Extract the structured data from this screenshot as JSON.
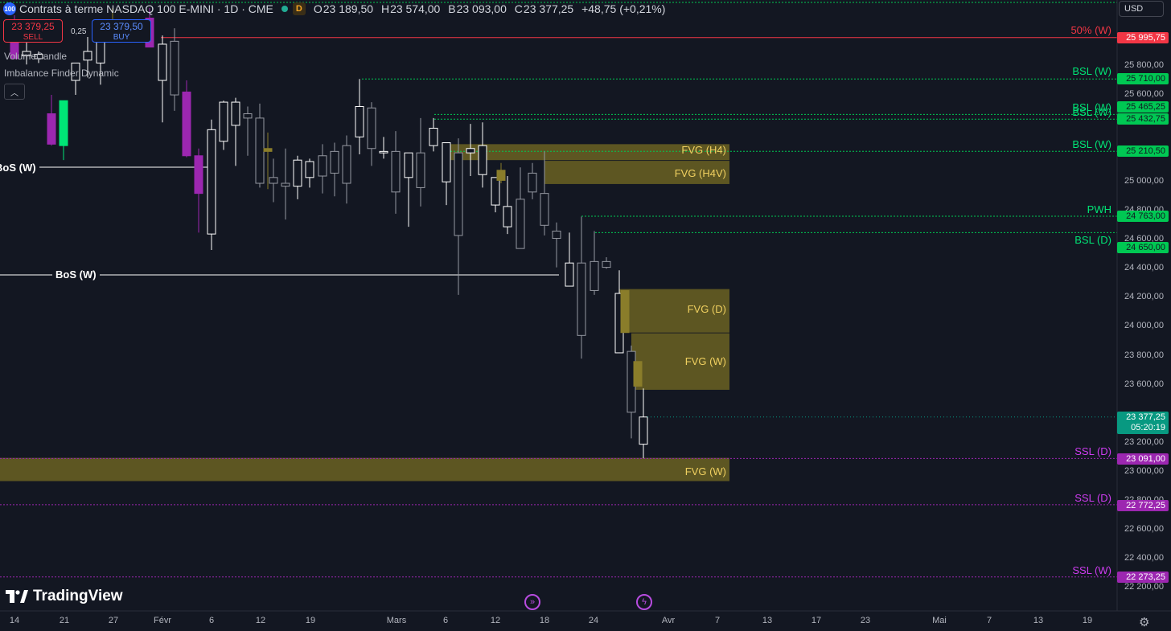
{
  "header": {
    "symbol_badge": "100",
    "title": "Contrats à terme NASDAQ 100 E-MINI · 1D · CME",
    "status_badge": "D",
    "ohlc": [
      {
        "k": "O",
        "v": "23 189,50"
      },
      {
        "k": "H",
        "v": "23 574,00"
      },
      {
        "k": "B",
        "v": "23 093,00"
      },
      {
        "k": "C",
        "v": "23 377,25"
      }
    ],
    "change": "+48,75 (+0,21%)"
  },
  "trade": {
    "sell_price": "23 379,25",
    "sell_label": "SELL",
    "buy_price": "23 379,50",
    "buy_label": "BUY",
    "spread": "0,25"
  },
  "indicators": [
    "VolumeCandle",
    "Imbalance Finder Dynamic"
  ],
  "currency": "USD",
  "price_axis": [
    "25 800,00",
    "25 600,00",
    "25 000,00",
    "24 800,00",
    "24 600,00",
    "24 400,00",
    "24 200,00",
    "24 000,00",
    "23 800,00",
    "23 600,00",
    "23 200,00",
    "23 000,00",
    "22 800,00",
    "22 600,00",
    "22 400,00",
    "22 200,00"
  ],
  "level_tags": [
    {
      "label": "50% (W)",
      "value": "25 995,75",
      "color": "red"
    },
    {
      "label": "BSL (W)",
      "value": "25 710,00",
      "color": "green"
    },
    {
      "label": "BSL (W)",
      "value": "25 465,25",
      "color": "green"
    },
    {
      "label": "BSL (W)",
      "value": "25 432,75",
      "color": "green"
    },
    {
      "label": "BSL (W)",
      "value": "25 210,50",
      "color": "green"
    },
    {
      "label": "PWH",
      "value": "24 763,00",
      "color": "green"
    },
    {
      "label": "BSL (D)",
      "value": "24 650,00",
      "color": "green"
    },
    {
      "label": "SSL (D)",
      "value": "23 091,00",
      "color": "purple"
    },
    {
      "label": "SSL (D)",
      "value": "22 772,25",
      "color": "purple"
    },
    {
      "label": "SSL (W)",
      "value": "22 273,25",
      "color": "purple"
    }
  ],
  "current_price": {
    "value": "23 377,25",
    "countdown": "05:20:19"
  },
  "fvg_labels": [
    "FVG (H4)",
    "FVG (H4V)",
    "FVG (D)",
    "FVG (W)",
    "FVG (W)"
  ],
  "bos_labels": [
    "BoS (W)",
    "BoS (W)"
  ],
  "time_axis": [
    "14",
    "21",
    "27",
    "Févr",
    "6",
    "12",
    "19",
    "Mars",
    "6",
    "12",
    "18",
    "24",
    "Avr",
    "7",
    "13",
    "17",
    "23",
    "Mai",
    "7",
    "13",
    "19"
  ],
  "logo": "TradingView",
  "icons": {
    "settings": "gear-icon",
    "replay": "fast-forward-icon",
    "alert": "lightning-icon"
  },
  "colors": {
    "background": "#131722",
    "bull": "#ffffff",
    "bear": "#ffffff",
    "fvg": "#6b6222",
    "bsl": "#00e676",
    "ssl": "#ce3cf0",
    "red_level": "#f23645"
  },
  "chart_data": {
    "type": "candlestick",
    "title": "Contrats à terme NASDAQ 100 E-MINI · 1D · CME",
    "ylim": [
      22100,
      26200
    ],
    "levels": [
      {
        "name": "50% (W)",
        "price": 25995.75
      },
      {
        "name": "BSL (W)",
        "price": 25710.0
      },
      {
        "name": "BSL (W)",
        "price": 25465.25
      },
      {
        "name": "BSL (W)",
        "price": 25432.75
      },
      {
        "name": "BSL (W)",
        "price": 25210.5
      },
      {
        "name": "PWH",
        "price": 24763.0
      },
      {
        "name": "BSL (D)",
        "price": 24650.0
      },
      {
        "name": "SSL (D)",
        "price": 23091.0
      },
      {
        "name": "SSL (D)",
        "price": 22772.25
      },
      {
        "name": "SSL (W)",
        "price": 22273.25
      }
    ],
    "last_candle": {
      "open": 23189.5,
      "high": 23574.0,
      "low": 23093.0,
      "close": 23377.25
    }
  }
}
